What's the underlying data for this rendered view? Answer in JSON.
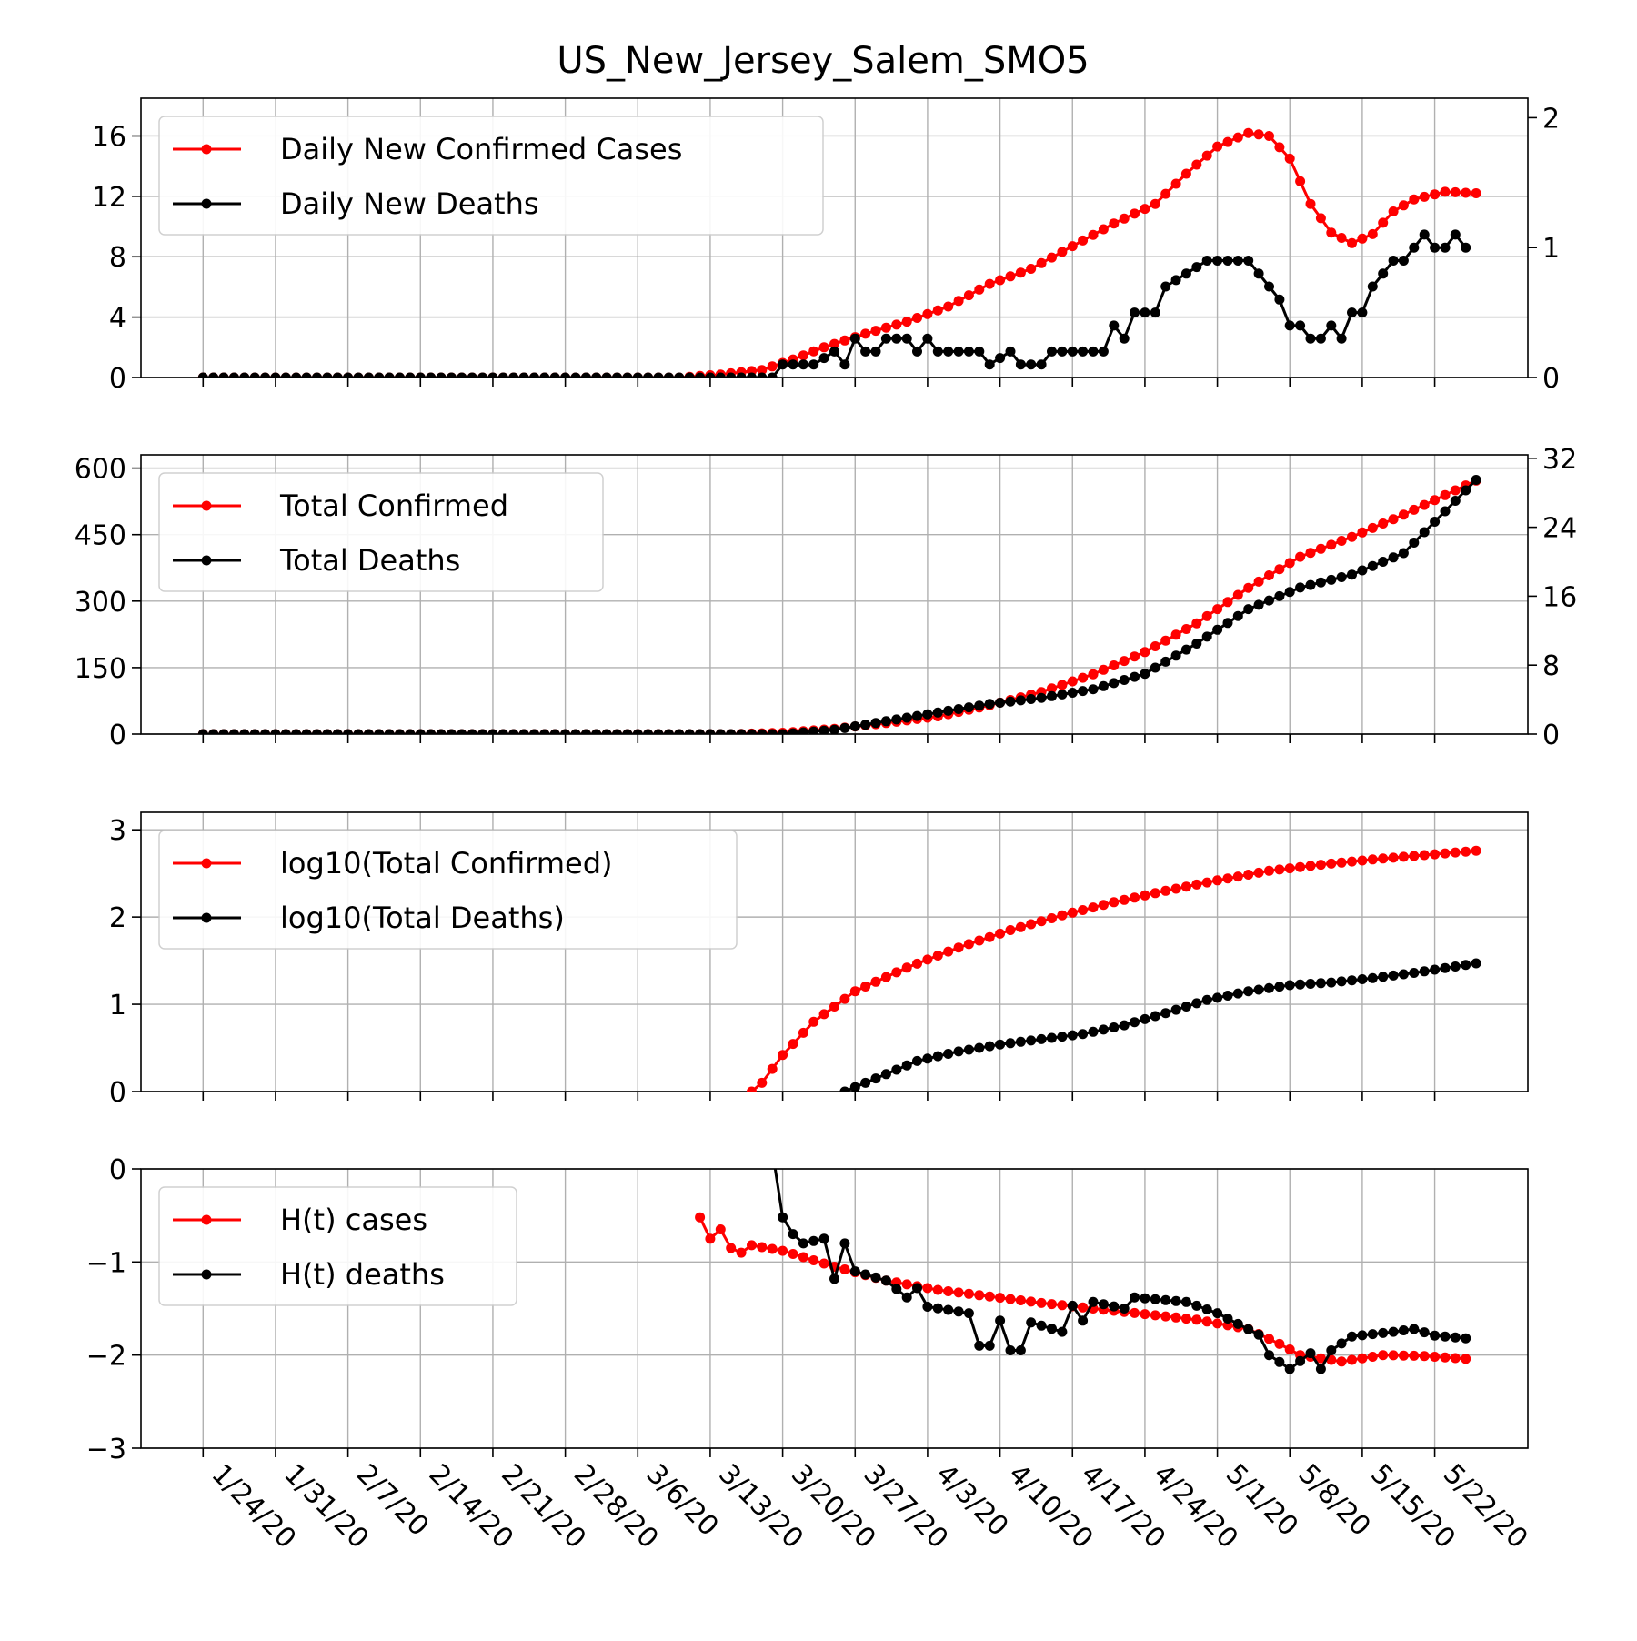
{
  "chart_data": {
    "type": "line",
    "title": "US_New_Jersey_Salem_SMO5",
    "colors": {
      "cases": "#ff0000",
      "deaths": "#000000"
    },
    "x_ticks": [
      "1/24/20",
      "1/31/20",
      "2/7/20",
      "2/14/20",
      "2/21/20",
      "2/28/20",
      "3/6/20",
      "3/13/20",
      "3/20/20",
      "3/27/20",
      "4/3/20",
      "4/10/20",
      "4/17/20",
      "4/24/20",
      "5/1/20",
      "5/8/20",
      "5/15/20",
      "5/22/20"
    ],
    "x_range": [
      "1/18/20",
      "5/31/20"
    ],
    "panels": [
      {
        "id": "daily",
        "legend": [
          "Daily New Confirmed Cases",
          "Daily New Deaths"
        ],
        "legend_loc": "upper left",
        "ylim_left": [
          0,
          18.5
        ],
        "yticks_left": [
          "0",
          "4",
          "8",
          "12",
          "16"
        ],
        "ylim_right": [
          0,
          2.15
        ],
        "yticks_right": [
          "0",
          "1",
          "2"
        ],
        "series": [
          {
            "name": "Daily New Confirmed Cases",
            "axis": "left",
            "color": "#ff0000",
            "points": [
              [
                "1/24/20",
                0
              ],
              [
                "3/10/20",
                0
              ],
              [
                "3/14/20",
                0.2
              ],
              [
                "3/18/20",
                0.5
              ],
              [
                "3/21/20",
                1.2
              ],
              [
                "3/24/20",
                2.0
              ],
              [
                "3/28/20",
                2.9
              ],
              [
                "4/1/20",
                3.7
              ],
              [
                "4/5/20",
                4.7
              ],
              [
                "4/9/20",
                6.2
              ],
              [
                "4/13/20",
                7.2
              ],
              [
                "4/17/20",
                8.7
              ],
              [
                "4/21/20",
                10.2
              ],
              [
                "4/25/20",
                11.5
              ],
              [
                "4/28/20",
                13.5
              ],
              [
                "5/1/20",
                15.3
              ],
              [
                "5/4/20",
                16.2
              ],
              [
                "5/6/20",
                16.0
              ],
              [
                "5/8/20",
                14.5
              ],
              [
                "5/10/20",
                11.5
              ],
              [
                "5/12/20",
                9.6
              ],
              [
                "5/14/20",
                8.9
              ],
              [
                "5/16/20",
                9.5
              ],
              [
                "5/18/20",
                11.0
              ],
              [
                "5/20/20",
                11.8
              ],
              [
                "5/23/20",
                12.3
              ],
              [
                "5/26/20",
                12.2
              ]
            ]
          },
          {
            "name": "Daily New Deaths",
            "axis": "right",
            "color": "#000000",
            "points": [
              [
                "1/24/20",
                0
              ],
              [
                "3/19/20",
                0
              ],
              [
                "3/20/20",
                0.1
              ],
              [
                "3/23/20",
                0.1
              ],
              [
                "3/25/20",
                0.2
              ],
              [
                "3/26/20",
                0.1
              ],
              [
                "3/27/20",
                0.3
              ],
              [
                "3/28/20",
                0.2
              ],
              [
                "3/29/20",
                0.2
              ],
              [
                "3/30/20",
                0.3
              ],
              [
                "4/1/20",
                0.3
              ],
              [
                "4/2/20",
                0.2
              ],
              [
                "4/3/20",
                0.3
              ],
              [
                "4/4/20",
                0.2
              ],
              [
                "4/8/20",
                0.2
              ],
              [
                "4/9/20",
                0.1
              ],
              [
                "4/11/20",
                0.2
              ],
              [
                "4/12/20",
                0.1
              ],
              [
                "4/14/20",
                0.1
              ],
              [
                "4/15/20",
                0.2
              ],
              [
                "4/20/20",
                0.2
              ],
              [
                "4/21/20",
                0.4
              ],
              [
                "4/22/20",
                0.3
              ],
              [
                "4/23/20",
                0.5
              ],
              [
                "4/25/20",
                0.5
              ],
              [
                "4/26/20",
                0.7
              ],
              [
                "4/28/20",
                0.8
              ],
              [
                "4/30/20",
                0.9
              ],
              [
                "5/4/20",
                0.9
              ],
              [
                "5/5/20",
                0.8
              ],
              [
                "5/6/20",
                0.7
              ],
              [
                "5/7/20",
                0.6
              ],
              [
                "5/8/20",
                0.4
              ],
              [
                "5/9/20",
                0.4
              ],
              [
                "5/10/20",
                0.3
              ],
              [
                "5/11/20",
                0.3
              ],
              [
                "5/12/20",
                0.4
              ],
              [
                "5/13/20",
                0.3
              ],
              [
                "5/14/20",
                0.5
              ],
              [
                "5/15/20",
                0.5
              ],
              [
                "5/16/20",
                0.7
              ],
              [
                "5/17/20",
                0.8
              ],
              [
                "5/18/20",
                0.9
              ],
              [
                "5/19/20",
                0.9
              ],
              [
                "5/20/20",
                1.0
              ],
              [
                "5/21/20",
                1.1
              ],
              [
                "5/22/20",
                1.0
              ],
              [
                "5/23/20",
                1.0
              ],
              [
                "5/24/20",
                1.1
              ],
              [
                "5/25/20",
                1.0
              ]
            ]
          }
        ]
      },
      {
        "id": "total",
        "legend": [
          "Total Confirmed",
          "Total Deaths"
        ],
        "legend_loc": "upper left",
        "ylim_left": [
          0,
          630
        ],
        "yticks_left": [
          "0",
          "150",
          "300",
          "450",
          "600"
        ],
        "ylim_right": [
          0,
          32.4
        ],
        "yticks_right": [
          "0",
          "8",
          "16",
          "24",
          "32"
        ],
        "series": [
          {
            "name": "Total Confirmed",
            "axis": "left",
            "color": "#ff0000",
            "points": [
              [
                "1/24/20",
                0
              ],
              [
                "3/15/20",
                0
              ],
              [
                "3/20/20",
                3
              ],
              [
                "3/25/20",
                12
              ],
              [
                "3/30/20",
                25
              ],
              [
                "4/4/20",
                40
              ],
              [
                "4/9/20",
                65
              ],
              [
                "4/14/20",
                95
              ],
              [
                "4/19/20",
                135
              ],
              [
                "4/24/20",
                185
              ],
              [
                "4/29/20",
                250
              ],
              [
                "5/4/20",
                330
              ],
              [
                "5/9/20",
                400
              ],
              [
                "5/14/20",
                445
              ],
              [
                "5/19/20",
                495
              ],
              [
                "5/26/20",
                572
              ]
            ]
          },
          {
            "name": "Total Deaths",
            "axis": "right",
            "color": "#000000",
            "points": [
              [
                "1/24/20",
                0
              ],
              [
                "3/20/20",
                0
              ],
              [
                "3/25/20",
                0.5
              ],
              [
                "3/30/20",
                1.5
              ],
              [
                "4/4/20",
                2.5
              ],
              [
                "4/9/20",
                3.5
              ],
              [
                "4/14/20",
                4.2
              ],
              [
                "4/19/20",
                5.2
              ],
              [
                "4/24/20",
                7
              ],
              [
                "4/29/20",
                10.5
              ],
              [
                "5/4/20",
                14.5
              ],
              [
                "5/9/20",
                17
              ],
              [
                "5/14/20",
                18.5
              ],
              [
                "5/19/20",
                21
              ],
              [
                "5/26/20",
                29.5
              ]
            ]
          }
        ]
      },
      {
        "id": "log",
        "legend": [
          "log10(Total Confirmed)",
          "log10(Total Deaths)"
        ],
        "legend_loc": "upper left",
        "ylim_left": [
          0,
          3.2
        ],
        "yticks_left": [
          "0",
          "1",
          "2",
          "3"
        ],
        "series": [
          {
            "name": "log10(Total Confirmed)",
            "axis": "left",
            "color": "#ff0000",
            "points": [
              [
                "3/17/20",
                0
              ],
              [
                "3/18/20",
                0.1
              ],
              [
                "3/20/20",
                0.42
              ],
              [
                "3/23/20",
                0.8
              ],
              [
                "3/27/20",
                1.15
              ],
              [
                "4/1/20",
                1.42
              ],
              [
                "4/6/20",
                1.65
              ],
              [
                "4/11/20",
                1.85
              ],
              [
                "4/16/20",
                2.02
              ],
              [
                "4/21/20",
                2.17
              ],
              [
                "4/26/20",
                2.3
              ],
              [
                "5/1/20",
                2.42
              ],
              [
                "5/6/20",
                2.53
              ],
              [
                "5/11/20",
                2.6
              ],
              [
                "5/16/20",
                2.66
              ],
              [
                "5/21/20",
                2.71
              ],
              [
                "5/26/20",
                2.76
              ]
            ]
          },
          {
            "name": "log10(Total Deaths)",
            "axis": "left",
            "color": "#000000",
            "points": [
              [
                "3/26/20",
                0
              ],
              [
                "3/27/20",
                0.05
              ],
              [
                "3/30/20",
                0.2
              ],
              [
                "4/2/20",
                0.35
              ],
              [
                "4/6/20",
                0.46
              ],
              [
                "4/10/20",
                0.54
              ],
              [
                "4/14/20",
                0.6
              ],
              [
                "4/18/20",
                0.66
              ],
              [
                "4/22/20",
                0.76
              ],
              [
                "4/26/20",
                0.9
              ],
              [
                "4/30/20",
                1.05
              ],
              [
                "5/4/20",
                1.15
              ],
              [
                "5/8/20",
                1.22
              ],
              [
                "5/12/20",
                1.25
              ],
              [
                "5/16/20",
                1.3
              ],
              [
                "5/20/20",
                1.36
              ],
              [
                "5/26/20",
                1.47
              ]
            ]
          }
        ]
      },
      {
        "id": "ht",
        "legend": [
          "H(t) cases",
          "H(t) deaths"
        ],
        "legend_loc": "upper left",
        "ylim_left": [
          -3,
          0
        ],
        "yticks_left": [
          "0",
          "−1",
          "−2",
          "−3"
        ],
        "series": [
          {
            "name": "H(t) cases",
            "axis": "left",
            "color": "#ff0000",
            "points": [
              [
                "3/12/20",
                -0.52
              ],
              [
                "3/13/20",
                -0.75
              ],
              [
                "3/14/20",
                -0.65
              ],
              [
                "3/15/20",
                -0.85
              ],
              [
                "3/16/20",
                -0.9
              ],
              [
                "3/17/20",
                -0.82
              ],
              [
                "3/20/20",
                -0.88
              ],
              [
                "3/25/20",
                -1.05
              ],
              [
                "3/30/20",
                -1.2
              ],
              [
                "4/4/20",
                -1.3
              ],
              [
                "4/9/20",
                -1.37
              ],
              [
                "4/14/20",
                -1.44
              ],
              [
                "4/19/20",
                -1.5
              ],
              [
                "4/24/20",
                -1.56
              ],
              [
                "4/29/20",
                -1.62
              ],
              [
                "5/4/20",
                -1.72
              ],
              [
                "5/7/20",
                -1.88
              ],
              [
                "5/9/20",
                -2.0
              ],
              [
                "5/13/20",
                -2.07
              ],
              [
                "5/17/20",
                -2.0
              ],
              [
                "5/21/20",
                -2.01
              ],
              [
                "5/25/20",
                -2.04
              ]
            ]
          },
          {
            "name": "H(t) deaths",
            "axis": "left",
            "color": "#000000",
            "points": [
              [
                "3/19/20",
                0.2
              ],
              [
                "3/20/20",
                -0.52
              ],
              [
                "3/21/20",
                -0.7
              ],
              [
                "3/22/20",
                -0.8
              ],
              [
                "3/24/20",
                -0.75
              ],
              [
                "3/25/20",
                -1.18
              ],
              [
                "3/26/20",
                -0.8
              ],
              [
                "3/27/20",
                -1.1
              ],
              [
                "3/30/20",
                -1.2
              ],
              [
                "4/1/20",
                -1.38
              ],
              [
                "4/2/20",
                -1.28
              ],
              [
                "4/3/20",
                -1.48
              ],
              [
                "4/7/20",
                -1.55
              ],
              [
                "4/8/20",
                -1.9
              ],
              [
                "4/9/20",
                -1.9
              ],
              [
                "4/10/20",
                -1.63
              ],
              [
                "4/11/20",
                -1.95
              ],
              [
                "4/12/20",
                -1.95
              ],
              [
                "4/13/20",
                -1.65
              ],
              [
                "4/16/20",
                -1.75
              ],
              [
                "4/17/20",
                -1.47
              ],
              [
                "4/18/20",
                -1.63
              ],
              [
                "4/19/20",
                -1.43
              ],
              [
                "4/22/20",
                -1.5
              ],
              [
                "4/23/20",
                -1.38
              ],
              [
                "4/28/20",
                -1.43
              ],
              [
                "5/1/20",
                -1.55
              ],
              [
                "5/5/20",
                -1.78
              ],
              [
                "5/6/20",
                -2.0
              ],
              [
                "5/8/20",
                -2.15
              ],
              [
                "5/10/20",
                -1.98
              ],
              [
                "5/11/20",
                -2.15
              ],
              [
                "5/12/20",
                -1.95
              ],
              [
                "5/14/20",
                -1.8
              ],
              [
                "5/18/20",
                -1.75
              ],
              [
                "5/20/20",
                -1.72
              ],
              [
                "5/22/20",
                -1.79
              ],
              [
                "5/25/20",
                -1.82
              ]
            ]
          }
        ]
      }
    ]
  }
}
